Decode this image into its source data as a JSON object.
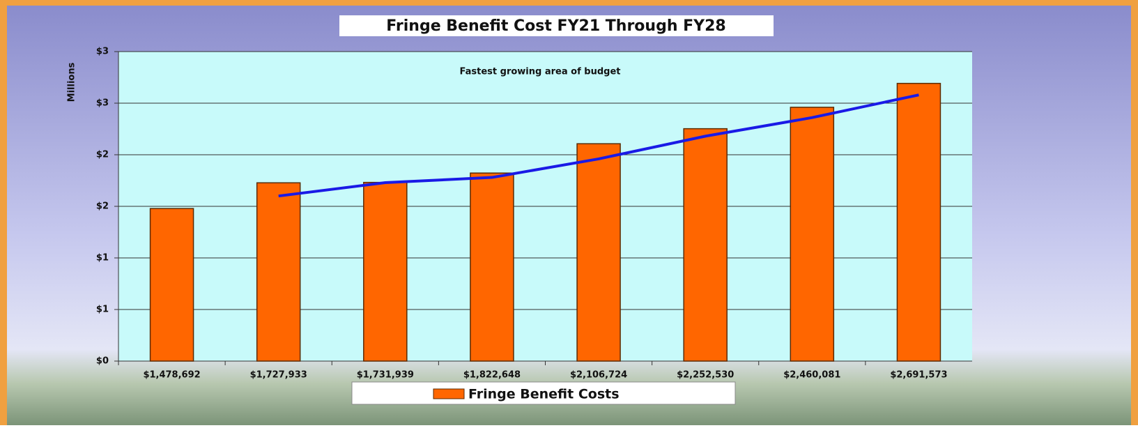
{
  "chart_data": {
    "type": "bar",
    "title": "Fringe Benefit Cost FY21 Through FY28",
    "annotation": "Fastest growing area of budget",
    "y_label": "Millions",
    "categories": [
      "$1,478,692",
      "$1,727,933",
      "$1,731,939",
      "$1,822,648",
      "$2,106,724",
      "$2,252,530",
      "$2,460,081",
      "$2,691,573"
    ],
    "series": [
      {
        "name": "Fringe Benefit Costs",
        "color": "#ff6600",
        "values": [
          1.478692,
          1.727933,
          1.731939,
          1.822648,
          2.106724,
          2.25253,
          2.460081,
          2.691573
        ]
      },
      {
        "type": "line",
        "color": "#1a1ae6",
        "values": [
          null,
          1.6,
          1.73,
          1.78,
          1.96,
          2.18,
          2.36,
          2.58
        ]
      }
    ],
    "ylim": [
      0,
      3
    ],
    "yticks": [
      {
        "value": 0,
        "label": "$0"
      },
      {
        "value": 0.5,
        "label": "$1"
      },
      {
        "value": 1,
        "label": "$1"
      },
      {
        "value": 1.5,
        "label": "$2"
      },
      {
        "value": 2,
        "label": "$2"
      },
      {
        "value": 2.5,
        "label": "$3"
      },
      {
        "value": 3,
        "label": "$3"
      }
    ],
    "grid": true,
    "legend": "bottom"
  }
}
